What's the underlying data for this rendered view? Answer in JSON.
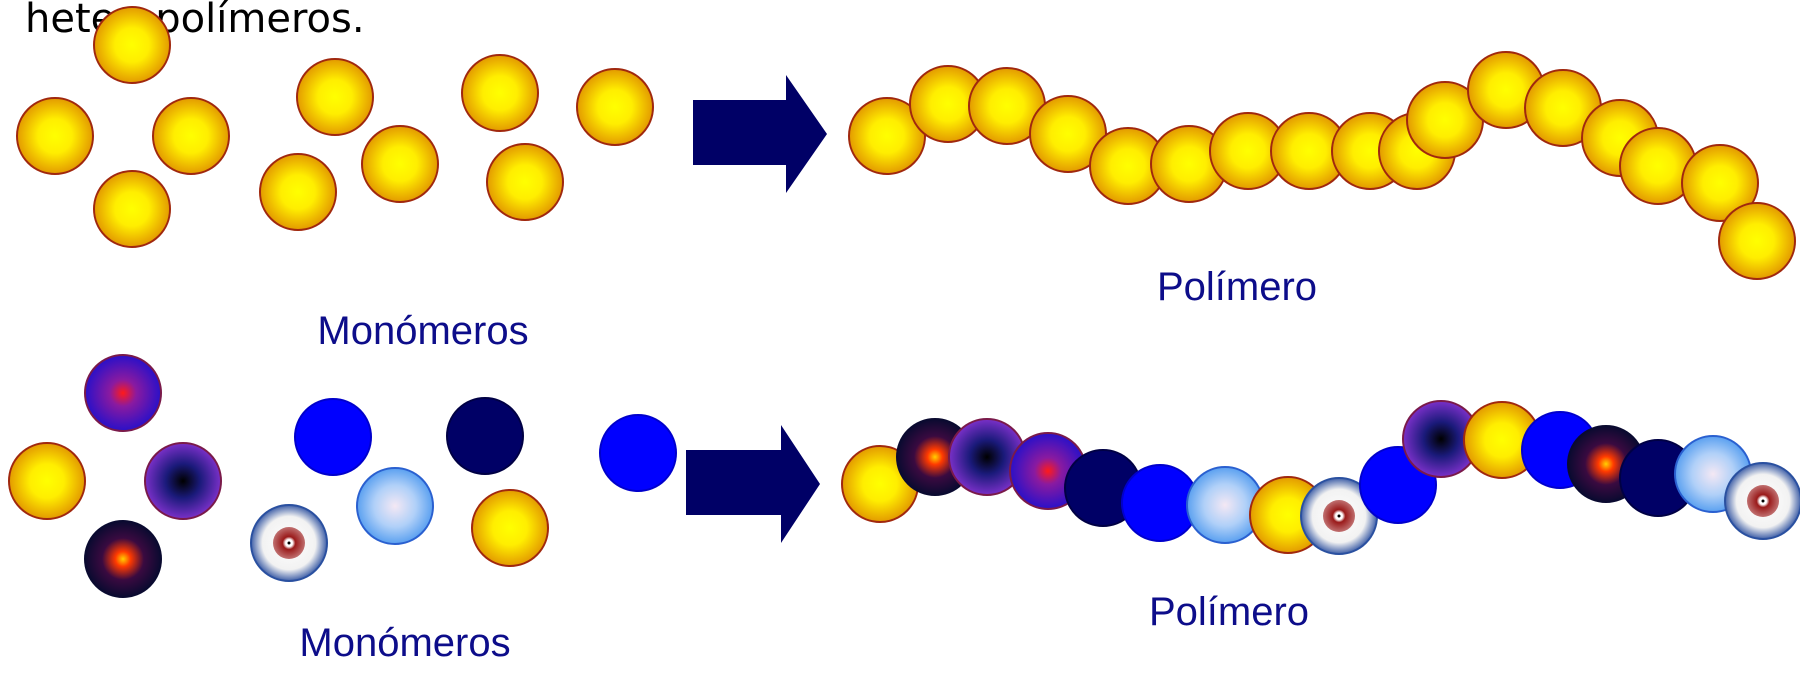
{
  "heading": "heteropolímeros.",
  "rows": [
    {
      "monomers_label": "Monómeros",
      "polymer_label": "Polímero",
      "monomer_types": [
        "gold",
        "gold",
        "gold",
        "gold",
        "gold",
        "gold",
        "gold",
        "gold",
        "gold",
        "gold"
      ],
      "polymer_types": [
        "gold",
        "gold",
        "gold",
        "gold",
        "gold",
        "gold",
        "gold",
        "gold",
        "gold",
        "gold",
        "gold",
        "gold",
        "gold",
        "gold",
        "gold",
        "gold",
        "gold",
        "gold",
        "gold"
      ]
    },
    {
      "monomers_label": "Monómeros",
      "polymer_label": "Polímero",
      "monomer_types": [
        "purple-red",
        "gold",
        "purple-dark",
        "dark-orange",
        "blue",
        "navy",
        "light-blue",
        "target",
        "gold",
        "blue"
      ],
      "polymer_types": [
        "gold",
        "dark-orange",
        "purple-dark",
        "purple-red",
        "navy",
        "blue",
        "light-blue",
        "gold",
        "target",
        "blue",
        "purple-dark",
        "gold",
        "blue",
        "dark-orange",
        "navy",
        "light-blue",
        "target"
      ]
    }
  ],
  "colors": {
    "gold_center": "#ffff00",
    "gold_edge": "#e8a000",
    "outline": "#a0280e",
    "arrow": "#000066",
    "label": "#0d0d8a",
    "blue": "#0000ff",
    "navy": "#000066"
  }
}
